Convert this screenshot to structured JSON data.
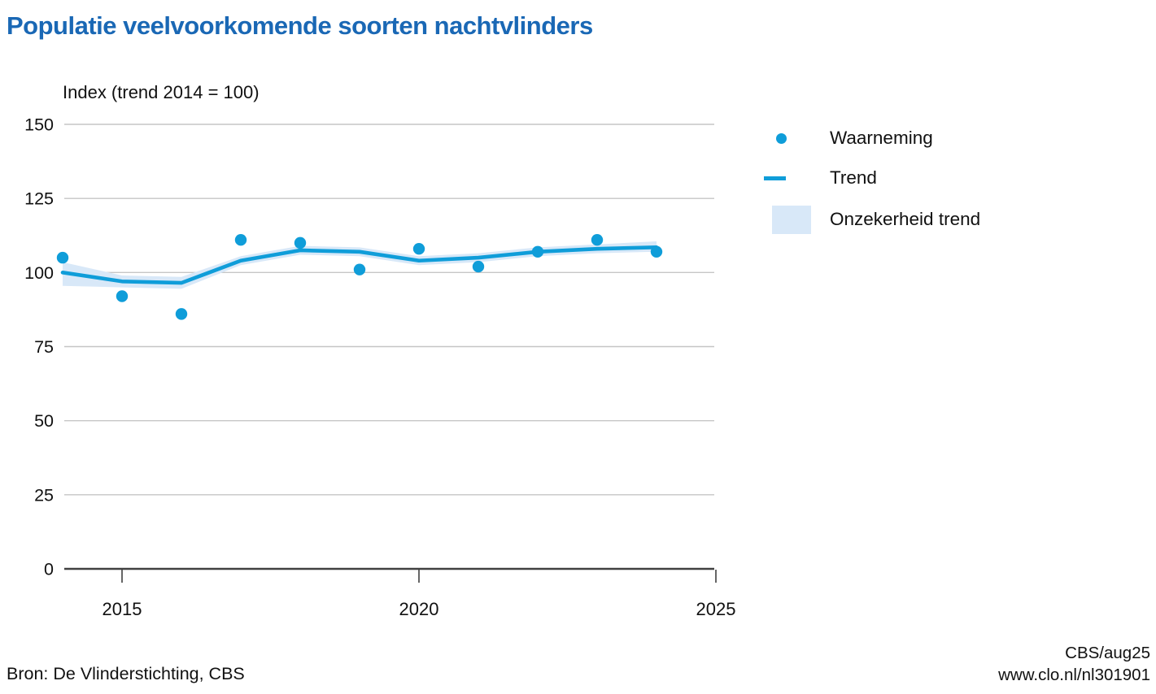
{
  "title": "Populatie veelvoorkomende soorten nachtvlinders",
  "legend": {
    "items": [
      {
        "label": "Waarneming",
        "marker": "dot-icon"
      },
      {
        "label": "Trend",
        "marker": "line-icon"
      },
      {
        "label": "Onzekerheid trend",
        "marker": "band-swatch-icon"
      }
    ]
  },
  "footer": {
    "source": "Bron: De Vlinderstichting, CBS",
    "credit": "CBS/aug25",
    "link": "www.clo.nl/nl301901"
  },
  "colors": {
    "title_blue": "#1a68b5",
    "accent_blue": "#0f9dd9",
    "uncertainty_band": "#d8e8f8",
    "gridline": "#c6c6c6",
    "axis": "#404040",
    "text": "#111111"
  },
  "chart_data": {
    "type": "line",
    "title": "Populatie veelvoorkomende soorten nachtvlinders",
    "ylabel": "Index (trend 2014 = 100)",
    "x": [
      2014,
      2015,
      2016,
      2017,
      2018,
      2019,
      2020,
      2021,
      2022,
      2023,
      2024
    ],
    "series": [
      {
        "name": "Waarneming",
        "type": "scatter",
        "values": [
          105,
          92,
          86,
          111,
          110,
          101,
          108,
          102,
          107,
          111,
          107
        ]
      },
      {
        "name": "Trend",
        "type": "line",
        "values": [
          100,
          97,
          96.5,
          104,
          107.5,
          107,
          104,
          105,
          107,
          108,
          108.5
        ]
      },
      {
        "name": "Onzekerheid trend",
        "type": "band",
        "upper": [
          103.5,
          99,
          98.5,
          105.5,
          109,
          108.5,
          105.5,
          106.5,
          108.5,
          109.5,
          110.5
        ],
        "lower": [
          95.5,
          95,
          94.5,
          102.5,
          106,
          105.5,
          102.5,
          103.5,
          105.5,
          106.5,
          107
        ]
      }
    ],
    "xticks": [
      2015,
      2020,
      2025
    ],
    "yticks": [
      0,
      25,
      50,
      75,
      100,
      125,
      150
    ],
    "xlim": [
      2014,
      2025
    ],
    "ylim": [
      0,
      150
    ],
    "grid": "horizontal",
    "legend_position": "right"
  }
}
